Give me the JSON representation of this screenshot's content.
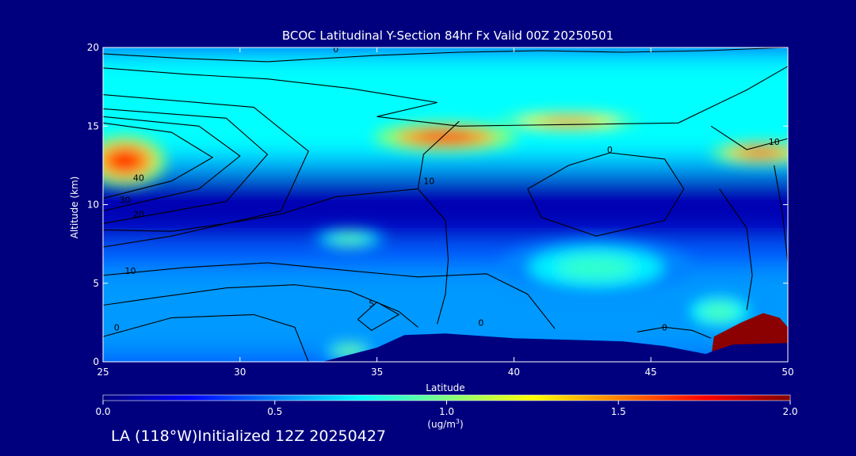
{
  "chart_data": {
    "type": "heatmap",
    "title": "BCOC Latitudinal Y-Section 84hr  Fx Valid 00Z 20250501",
    "xlabel": "Latitude",
    "ylabel": "Altitude (km)",
    "xlim": [
      25,
      50
    ],
    "ylim": [
      0,
      20
    ],
    "x_ticks": [
      25,
      30,
      35,
      40,
      45,
      50
    ],
    "x_tick_labels": [
      "25",
      "30",
      "35",
      "40",
      "45",
      "50"
    ],
    "y_ticks": [
      0,
      5,
      10,
      15,
      20
    ],
    "y_tick_labels": [
      "0",
      "5",
      "10",
      "15",
      "20"
    ],
    "colorbar": {
      "min": 0.0,
      "max": 2.0,
      "ticks": [
        0.0,
        0.5,
        1.0,
        1.5,
        2.0
      ],
      "tick_labels": [
        "0.0",
        "0.5",
        "1.0",
        "1.5",
        "2.0"
      ],
      "units_label": "(ug/m",
      "units_superscript": "3",
      "units_close": ")",
      "colormap": [
        "#00007f",
        "#0000ff",
        "#007fff",
        "#00ffff",
        "#7fff7f",
        "#ffff00",
        "#ff7f00",
        "#ff0000",
        "#7f0000"
      ]
    },
    "blobs": [
      {
        "lat": 37.5,
        "alt": 14.3,
        "rlat": 2.6,
        "ralt": 0.9,
        "value": 1.7
      },
      {
        "lat": 42.0,
        "alt": 15.3,
        "rlat": 2.6,
        "ralt": 0.6,
        "value": 1.5
      },
      {
        "lat": 25.8,
        "alt": 12.8,
        "rlat": 1.5,
        "ralt": 1.6,
        "value": 1.7
      },
      {
        "lat": 49.0,
        "alt": 13.3,
        "rlat": 1.8,
        "ralt": 0.7,
        "value": 1.6
      },
      {
        "lat": 34.0,
        "alt": 7.8,
        "rlat": 1.3,
        "ralt": 0.6,
        "value": 0.95
      },
      {
        "lat": 43.0,
        "alt": 6.0,
        "rlat": 3.5,
        "ralt": 1.8,
        "value": 0.85
      },
      {
        "lat": 34.0,
        "alt": 0.7,
        "rlat": 1.0,
        "ralt": 0.6,
        "value": 1.0
      },
      {
        "lat": 47.5,
        "alt": 3.2,
        "rlat": 1.5,
        "ralt": 1.2,
        "value": 0.9
      }
    ],
    "bands": [
      {
        "alt_from": 12.5,
        "alt_to": 20,
        "value": 0.75
      },
      {
        "alt_from": 0,
        "alt_to": 6.5,
        "value": 0.55
      },
      {
        "alt_from": 8.0,
        "alt_to": 11.8,
        "value": 0.1
      }
    ],
    "terrain_profile": [
      {
        "lat": 33.0,
        "alt": 0
      },
      {
        "lat": 35.0,
        "alt": 0.9
      },
      {
        "lat": 36.0,
        "alt": 1.7
      },
      {
        "lat": 37.5,
        "alt": 1.8
      },
      {
        "lat": 40.0,
        "alt": 1.5
      },
      {
        "lat": 44.0,
        "alt": 1.3
      },
      {
        "lat": 45.5,
        "alt": 1.0
      },
      {
        "lat": 47.0,
        "alt": 0.5
      },
      {
        "lat": 47.3,
        "alt": 0.7
      },
      {
        "lat": 48.0,
        "alt": 1.1
      },
      {
        "lat": 50.0,
        "alt": 1.2
      }
    ],
    "saturated_region": [
      {
        "lat": 47.2,
        "alt": 0.3
      },
      {
        "lat": 47.3,
        "alt": 1.6
      },
      {
        "lat": 48.3,
        "alt": 2.5
      },
      {
        "lat": 49.1,
        "alt": 3.1
      },
      {
        "lat": 49.7,
        "alt": 2.8
      },
      {
        "lat": 50.0,
        "alt": 2.2
      },
      {
        "lat": 50.0,
        "alt": 1.2
      },
      {
        "lat": 47.2,
        "alt": 0.5
      }
    ],
    "contour_lines": [
      {
        "points": [
          [
            25,
            19.6
          ],
          [
            28,
            19.3
          ],
          [
            31,
            19.1
          ],
          [
            35,
            19.5
          ],
          [
            38,
            19.7
          ],
          [
            41,
            19.8
          ],
          [
            44,
            19.7
          ],
          [
            47,
            19.8
          ],
          [
            50,
            20
          ]
        ]
      },
      {
        "points": [
          [
            25,
            18.7
          ],
          [
            28,
            18.3
          ],
          [
            31,
            18.0
          ],
          [
            34,
            17.4
          ],
          [
            37.2,
            16.5
          ],
          [
            35,
            15.6
          ],
          [
            38,
            15.0
          ],
          [
            42,
            15.1
          ],
          [
            46,
            15.2
          ],
          [
            48.5,
            17.3
          ],
          [
            50,
            18.8
          ]
        ]
      },
      {
        "points": [
          [
            25,
            15.2
          ],
          [
            27.5,
            14.6
          ],
          [
            29,
            13.0
          ],
          [
            27.5,
            11.5
          ],
          [
            25,
            10.4
          ]
        ]
      },
      {
        "points": [
          [
            25,
            15.6
          ],
          [
            28.5,
            15.0
          ],
          [
            30,
            13.1
          ],
          [
            28.5,
            11.0
          ],
          [
            25,
            9.6
          ]
        ]
      },
      {
        "points": [
          [
            25,
            16.1
          ],
          [
            29.5,
            15.5
          ],
          [
            31,
            13.2
          ],
          [
            29.5,
            10.2
          ],
          [
            25,
            8.8
          ]
        ]
      },
      {
        "points": [
          [
            25,
            17.0
          ],
          [
            30.5,
            16.2
          ],
          [
            32.5,
            13.4
          ],
          [
            31.5,
            9.6
          ],
          [
            27.5,
            8.0
          ],
          [
            25,
            7.3
          ]
        ]
      },
      {
        "points": [
          [
            25,
            5.5
          ],
          [
            28,
            6.0
          ],
          [
            31,
            6.3
          ],
          [
            34,
            5.8
          ],
          [
            36.5,
            5.4
          ],
          [
            39,
            5.6
          ],
          [
            40.5,
            4.3
          ],
          [
            41.5,
            2.1
          ]
        ]
      },
      {
        "points": [
          [
            36.5,
            11.0
          ],
          [
            37.5,
            9.0
          ],
          [
            37.6,
            6.5
          ],
          [
            37.5,
            4.3
          ],
          [
            37.2,
            2.4
          ]
        ]
      },
      {
        "points": [
          [
            25,
            8.4
          ],
          [
            27.5,
            8.3
          ],
          [
            29.5,
            8.8
          ],
          [
            31.5,
            9.4
          ],
          [
            33.5,
            10.5
          ],
          [
            36.5,
            11.0
          ],
          [
            36.7,
            13.2
          ],
          [
            38.0,
            15.3
          ]
        ]
      },
      {
        "points": [
          [
            25,
            3.6
          ],
          [
            27,
            4.1
          ],
          [
            29.5,
            4.7
          ],
          [
            32,
            4.9
          ],
          [
            34,
            4.5
          ],
          [
            35.8,
            3.2
          ],
          [
            36.5,
            2.2
          ]
        ]
      },
      {
        "points": [
          [
            25,
            1.6
          ],
          [
            27.5,
            2.8
          ],
          [
            30.5,
            3.0
          ],
          [
            32,
            2.2
          ],
          [
            32.5,
            0
          ]
        ]
      },
      {
        "points": [
          [
            34.3,
            2.7
          ],
          [
            35.0,
            3.8
          ],
          [
            35.8,
            3.0
          ],
          [
            34.8,
            2.0
          ],
          [
            34.3,
            2.7
          ]
        ]
      },
      {
        "points": [
          [
            40.5,
            11.0
          ],
          [
            42,
            12.5
          ],
          [
            43.5,
            13.3
          ],
          [
            45.5,
            12.9
          ],
          [
            46.2,
            11.0
          ],
          [
            45.5,
            9.0
          ],
          [
            43,
            8.0
          ],
          [
            41,
            9.2
          ],
          [
            40.5,
            11.0
          ]
        ]
      },
      {
        "points": [
          [
            44.5,
            1.9
          ],
          [
            45.5,
            2.2
          ],
          [
            46.5,
            2.0
          ],
          [
            47.2,
            1.5
          ]
        ]
      },
      {
        "points": [
          [
            47.5,
            11.0
          ],
          [
            48.5,
            8.5
          ],
          [
            48.7,
            5.5
          ],
          [
            48.5,
            3.3
          ]
        ]
      },
      {
        "points": [
          [
            49.5,
            12.5
          ],
          [
            49.8,
            9.5
          ],
          [
            50,
            6.3
          ]
        ]
      },
      {
        "points": [
          [
            47.2,
            15.0
          ],
          [
            48.5,
            13.5
          ],
          [
            50,
            14.2
          ]
        ]
      }
    ],
    "contour_labels": [
      {
        "text": "0",
        "lat": 33.5,
        "alt": 19.7
      },
      {
        "text": "40",
        "lat": 26.3,
        "alt": 11.5
      },
      {
        "text": "30",
        "lat": 25.8,
        "alt": 10.1
      },
      {
        "text": "20",
        "lat": 26.3,
        "alt": 9.2
      },
      {
        "text": "10",
        "lat": 26.0,
        "alt": 5.6
      },
      {
        "text": "0",
        "lat": 25.5,
        "alt": 2.0
      },
      {
        "text": "5",
        "lat": 34.8,
        "alt": 3.5
      },
      {
        "text": "10",
        "lat": 36.9,
        "alt": 11.3
      },
      {
        "text": "0",
        "lat": 43.5,
        "alt": 13.3
      },
      {
        "text": "10",
        "lat": 49.5,
        "alt": 13.8
      },
      {
        "text": "0",
        "lat": 38.8,
        "alt": 2.3
      },
      {
        "text": "0",
        "lat": 45.5,
        "alt": 2.0
      }
    ]
  },
  "footer": {
    "text": "LA (118°W)Initialized 12Z 20250427"
  }
}
